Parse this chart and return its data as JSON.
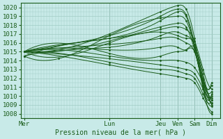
{
  "title": "",
  "xlabel": "Pression niveau de la mer( hPa )",
  "ylabel": "",
  "ylim": [
    1007.5,
    1020.5
  ],
  "yticks": [
    1008,
    1009,
    1010,
    1011,
    1012,
    1013,
    1014,
    1015,
    1016,
    1017,
    1018,
    1019,
    1020
  ],
  "day_labels": [
    "Mer",
    "Lun",
    "Jeu",
    "Ven",
    "Sam",
    "Dim"
  ],
  "day_positions": [
    0,
    5,
    8,
    9,
    10,
    11
  ],
  "background_color": "#c8eae8",
  "grid_color": "#a0ccc4",
  "line_color": "#1a5c1a",
  "tick_label_color": "#1a5c1a",
  "xlim": [
    -0.2,
    11.5
  ],
  "lines": [
    {
      "pts": [
        [
          0,
          1015.0
        ],
        [
          5,
          1017.0
        ],
        [
          8,
          1019.5
        ],
        [
          9,
          1020.2
        ],
        [
          9.5,
          1019.8
        ],
        [
          10,
          1016.5
        ],
        [
          10.5,
          1011.0
        ],
        [
          11,
          1008.0
        ]
      ]
    },
    {
      "pts": [
        [
          0,
          1015.0
        ],
        [
          5,
          1016.8
        ],
        [
          8,
          1019.0
        ],
        [
          9,
          1019.8
        ],
        [
          9.5,
          1019.2
        ],
        [
          10,
          1015.8
        ],
        [
          10.5,
          1010.8
        ],
        [
          11,
          1009.5
        ]
      ]
    },
    {
      "pts": [
        [
          0,
          1015.0
        ],
        [
          5,
          1016.5
        ],
        [
          8,
          1018.5
        ],
        [
          9,
          1019.5
        ],
        [
          9.5,
          1019.0
        ],
        [
          10,
          1015.5
        ],
        [
          10.5,
          1011.2
        ],
        [
          11,
          1010.0
        ]
      ]
    },
    {
      "pts": [
        [
          0,
          1015.0
        ],
        [
          5,
          1016.2
        ],
        [
          8,
          1017.8
        ],
        [
          9,
          1018.2
        ],
        [
          9.5,
          1017.8
        ],
        [
          10,
          1015.2
        ],
        [
          10.5,
          1011.5
        ],
        [
          11,
          1010.5
        ]
      ]
    },
    {
      "pts": [
        [
          0,
          1015.0
        ],
        [
          5,
          1015.8
        ],
        [
          8,
          1016.5
        ],
        [
          9,
          1016.5
        ],
        [
          9.5,
          1016.0
        ],
        [
          10,
          1015.0
        ],
        [
          10.5,
          1011.8
        ],
        [
          11,
          1011.2
        ]
      ]
    },
    {
      "pts": [
        [
          0,
          1015.0
        ],
        [
          5,
          1016.0
        ],
        [
          8,
          1017.2
        ],
        [
          9,
          1016.8
        ],
        [
          9.5,
          1016.5
        ],
        [
          10,
          1015.8
        ],
        [
          10.5,
          1012.0
        ],
        [
          11,
          1011.5
        ]
      ]
    },
    {
      "pts": [
        [
          0,
          1015.0
        ],
        [
          5,
          1015.2
        ],
        [
          8,
          1015.5
        ],
        [
          9,
          1015.5
        ],
        [
          9.5,
          1015.2
        ],
        [
          10,
          1015.0
        ],
        [
          10.5,
          1011.0
        ],
        [
          11,
          1010.2
        ]
      ]
    },
    {
      "pts": [
        [
          0,
          1015.0
        ],
        [
          5,
          1014.5
        ],
        [
          8,
          1014.0
        ],
        [
          9,
          1014.0
        ],
        [
          9.5,
          1013.8
        ],
        [
          10,
          1013.2
        ],
        [
          10.5,
          1011.5
        ],
        [
          11,
          1009.5
        ]
      ]
    },
    {
      "pts": [
        [
          0,
          1015.0
        ],
        [
          5,
          1014.2
        ],
        [
          8,
          1013.5
        ],
        [
          9,
          1013.2
        ],
        [
          9.5,
          1013.0
        ],
        [
          10,
          1012.5
        ],
        [
          10.5,
          1010.8
        ],
        [
          11,
          1009.2
        ]
      ]
    },
    {
      "pts": [
        [
          0,
          1015.0
        ],
        [
          5,
          1013.8
        ],
        [
          8,
          1013.0
        ],
        [
          9,
          1012.8
        ],
        [
          9.5,
          1012.5
        ],
        [
          10,
          1012.0
        ],
        [
          10.5,
          1010.2
        ],
        [
          11,
          1008.8
        ]
      ]
    },
    {
      "pts": [
        [
          0,
          1015.0
        ],
        [
          5,
          1013.5
        ],
        [
          8,
          1012.5
        ],
        [
          9,
          1012.2
        ],
        [
          9.5,
          1012.0
        ],
        [
          10,
          1011.5
        ],
        [
          10.5,
          1009.8
        ],
        [
          11,
          1008.2
        ]
      ]
    },
    {
      "pts": [
        [
          0,
          1015.0
        ],
        [
          5,
          1014.8
        ],
        [
          8,
          1014.5
        ],
        [
          9,
          1015.0
        ],
        [
          9.5,
          1015.2
        ],
        [
          10,
          1015.5
        ],
        [
          10.5,
          1012.5
        ],
        [
          11,
          1009.0
        ]
      ]
    },
    {
      "pts": [
        [
          0,
          1014.5
        ],
        [
          5,
          1016.5
        ],
        [
          8,
          1017.5
        ],
        [
          9,
          1017.8
        ],
        [
          9.5,
          1017.5
        ],
        [
          10,
          1016.2
        ],
        [
          10.5,
          1013.0
        ],
        [
          11,
          1010.8
        ]
      ]
    },
    {
      "pts": [
        [
          0,
          1014.5
        ],
        [
          5,
          1015.5
        ],
        [
          8,
          1016.8
        ],
        [
          9,
          1017.2
        ],
        [
          9.5,
          1016.8
        ],
        [
          10,
          1015.8
        ],
        [
          10.5,
          1012.0
        ],
        [
          11,
          1009.8
        ]
      ]
    },
    {
      "pts": [
        [
          0,
          1014.5
        ],
        [
          2,
          1014.2
        ],
        [
          5,
          1016.8
        ],
        [
          8,
          1018.8
        ],
        [
          9,
          1019.0
        ],
        [
          9.5,
          1018.5
        ],
        [
          10,
          1015.5
        ],
        [
          10.5,
          1011.5
        ],
        [
          11,
          1009.2
        ]
      ]
    }
  ]
}
